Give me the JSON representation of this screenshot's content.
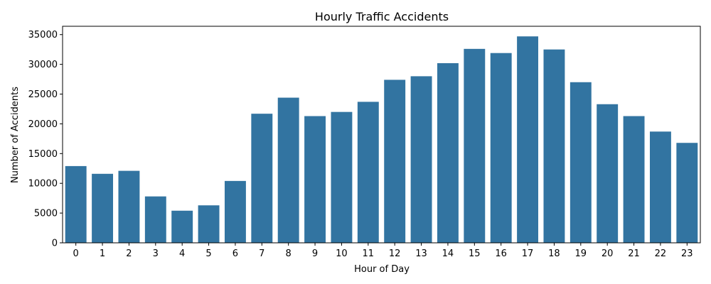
{
  "colors": {
    "bar": "#3274a1",
    "axis": "#000000",
    "background": "#ffffff"
  },
  "chart_data": {
    "type": "bar",
    "title": "Hourly Traffic Accidents",
    "xlabel": "Hour of Day",
    "ylabel": "Number of Accidents",
    "categories": [
      "0",
      "1",
      "2",
      "3",
      "4",
      "5",
      "6",
      "7",
      "8",
      "9",
      "10",
      "11",
      "12",
      "13",
      "14",
      "15",
      "16",
      "17",
      "18",
      "19",
      "20",
      "21",
      "22",
      "23"
    ],
    "values": [
      12900,
      11600,
      12100,
      7800,
      5400,
      6300,
      10400,
      21700,
      24400,
      21300,
      22000,
      23700,
      27400,
      28000,
      30200,
      32600,
      31900,
      34700,
      32500,
      27000,
      23300,
      21300,
      18700,
      16800
    ],
    "yticks": [
      0,
      5000,
      10000,
      15000,
      20000,
      25000,
      30000,
      35000
    ],
    "ylim": [
      0,
      36400
    ],
    "grid": false,
    "legend": "none"
  }
}
